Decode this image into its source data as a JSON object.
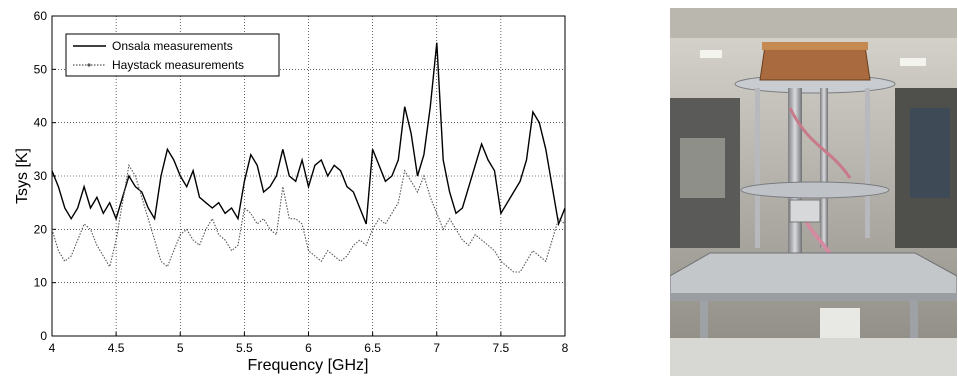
{
  "chart_data": {
    "type": "line",
    "title": "",
    "xlabel": "Frequency [GHz]",
    "ylabel": "Tsys [K]",
    "xlim": [
      4,
      8
    ],
    "ylim": [
      0,
      60
    ],
    "xticks": [
      4,
      4.5,
      5,
      5.5,
      6,
      6.5,
      7,
      7.5,
      8
    ],
    "xtick_labels": [
      "4",
      "4.5",
      "5",
      "5.5",
      "6",
      "6.5",
      "7",
      "7.5",
      "8"
    ],
    "yticks": [
      0,
      10,
      20,
      30,
      40,
      50,
      60
    ],
    "ytick_labels": [
      "0",
      "10",
      "20",
      "30",
      "40",
      "50",
      "60"
    ],
    "grid": true,
    "legend_position": "top-left",
    "series": [
      {
        "name": "Onsala measurements",
        "style": "solid",
        "color": "#000000",
        "x": [
          4.0,
          4.05,
          4.1,
          4.15,
          4.2,
          4.25,
          4.3,
          4.35,
          4.4,
          4.45,
          4.5,
          4.55,
          4.6,
          4.65,
          4.7,
          4.75,
          4.8,
          4.85,
          4.9,
          4.95,
          5.0,
          5.05,
          5.1,
          5.15,
          5.2,
          5.25,
          5.3,
          5.35,
          5.4,
          5.45,
          5.5,
          5.55,
          5.6,
          5.65,
          5.7,
          5.75,
          5.8,
          5.85,
          5.9,
          5.95,
          6.0,
          6.05,
          6.1,
          6.15,
          6.2,
          6.25,
          6.3,
          6.35,
          6.4,
          6.45,
          6.5,
          6.55,
          6.6,
          6.65,
          6.7,
          6.75,
          6.8,
          6.85,
          6.9,
          6.95,
          7.0,
          7.05,
          7.1,
          7.15,
          7.2,
          7.25,
          7.3,
          7.35,
          7.4,
          7.45,
          7.5,
          7.55,
          7.6,
          7.65,
          7.7,
          7.75,
          7.8,
          7.85,
          7.9,
          7.95,
          8.0
        ],
        "y": [
          31,
          28,
          24,
          22,
          24,
          28,
          24,
          26,
          23,
          25,
          22,
          26,
          30,
          28,
          27,
          24,
          22,
          30,
          35,
          33,
          30,
          28,
          31,
          26,
          25,
          24,
          25,
          23,
          24,
          22,
          29,
          34,
          32,
          27,
          28,
          30,
          35,
          30,
          29,
          33,
          28,
          32,
          33,
          30,
          32,
          31,
          28,
          27,
          24,
          21,
          35,
          32,
          29,
          30,
          33,
          43,
          38,
          30,
          34,
          43,
          55,
          33,
          27,
          23,
          24,
          28,
          32,
          36,
          33,
          31,
          23,
          25,
          27,
          29,
          33,
          42,
          40,
          35,
          28,
          21,
          24
        ]
      },
      {
        "name": "Haystack measurements",
        "style": "dotted",
        "color": "#555555",
        "x": [
          4.0,
          4.05,
          4.1,
          4.15,
          4.2,
          4.25,
          4.3,
          4.35,
          4.4,
          4.45,
          4.5,
          4.55,
          4.6,
          4.65,
          4.7,
          4.75,
          4.8,
          4.85,
          4.9,
          4.95,
          5.0,
          5.05,
          5.1,
          5.15,
          5.2,
          5.25,
          5.3,
          5.35,
          5.4,
          5.45,
          5.5,
          5.55,
          5.6,
          5.65,
          5.7,
          5.75,
          5.8,
          5.85,
          5.9,
          5.95,
          6.0,
          6.05,
          6.1,
          6.15,
          6.2,
          6.25,
          6.3,
          6.35,
          6.4,
          6.45,
          6.5,
          6.55,
          6.6,
          6.65,
          6.7,
          6.75,
          6.8,
          6.85,
          6.9,
          6.95,
          7.0,
          7.05,
          7.1,
          7.15,
          7.2,
          7.25,
          7.3,
          7.35,
          7.4,
          7.45,
          7.5,
          7.55,
          7.6,
          7.65,
          7.7,
          7.75,
          7.8,
          7.85,
          7.9,
          7.95,
          8.0
        ],
        "y": [
          20,
          16,
          14,
          15,
          18,
          21,
          20,
          17,
          15,
          13,
          18,
          25,
          32,
          30,
          26,
          22,
          18,
          14,
          13,
          16,
          19,
          20,
          18,
          17,
          20,
          22,
          19,
          18,
          16,
          17,
          24,
          23,
          21,
          22,
          20,
          19,
          28,
          22,
          22,
          21,
          16,
          15,
          14,
          16,
          15,
          14,
          15,
          17,
          18,
          17,
          20,
          22,
          21,
          23,
          25,
          31,
          29,
          27,
          30,
          26,
          23,
          20,
          22,
          20,
          18,
          17,
          19,
          18,
          17,
          16,
          14,
          13,
          12,
          12,
          14,
          16,
          15,
          14,
          18,
          22,
          21
        ]
      }
    ]
  },
  "photo": {
    "subject": "cryogenic-receiver-apparatus-photo"
  }
}
